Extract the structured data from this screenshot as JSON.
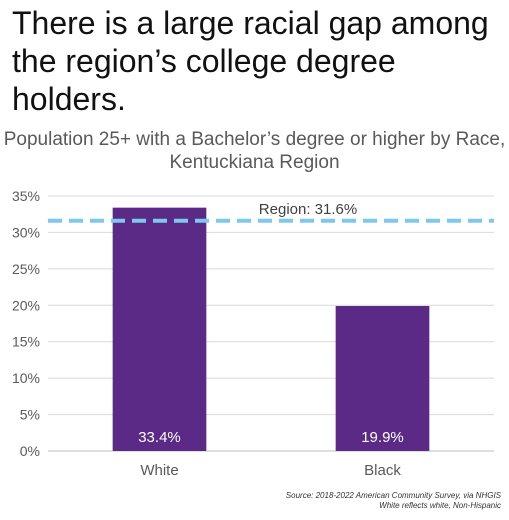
{
  "headline": "There is a large racial gap among the region’s college degree holders.",
  "chart_data": {
    "type": "bar",
    "title": "Population 25+ with a Bachelor’s degree or higher by Race, Kentuckiana Region",
    "categories": [
      "White",
      "Black"
    ],
    "values": [
      33.4,
      19.9
    ],
    "value_labels": [
      "33.4%",
      "19.9%"
    ],
    "ylim": [
      0,
      35
    ],
    "yticks": [
      "0%",
      "5%",
      "10%",
      "15%",
      "20%",
      "25%",
      "30%",
      "35%"
    ],
    "ytick_values": [
      0,
      5,
      10,
      15,
      20,
      25,
      30,
      35
    ],
    "grid": true,
    "bar_color": "#5b2a86",
    "reference_line": {
      "value": 31.6,
      "label": "Region: 31.6%",
      "color": "#7ec8ef",
      "style": "dashed"
    }
  },
  "source": {
    "line1": "Source: 2018-2022 American Community Survey, via NHGIS",
    "line2": "White reflects white, Non-Hispanic"
  }
}
